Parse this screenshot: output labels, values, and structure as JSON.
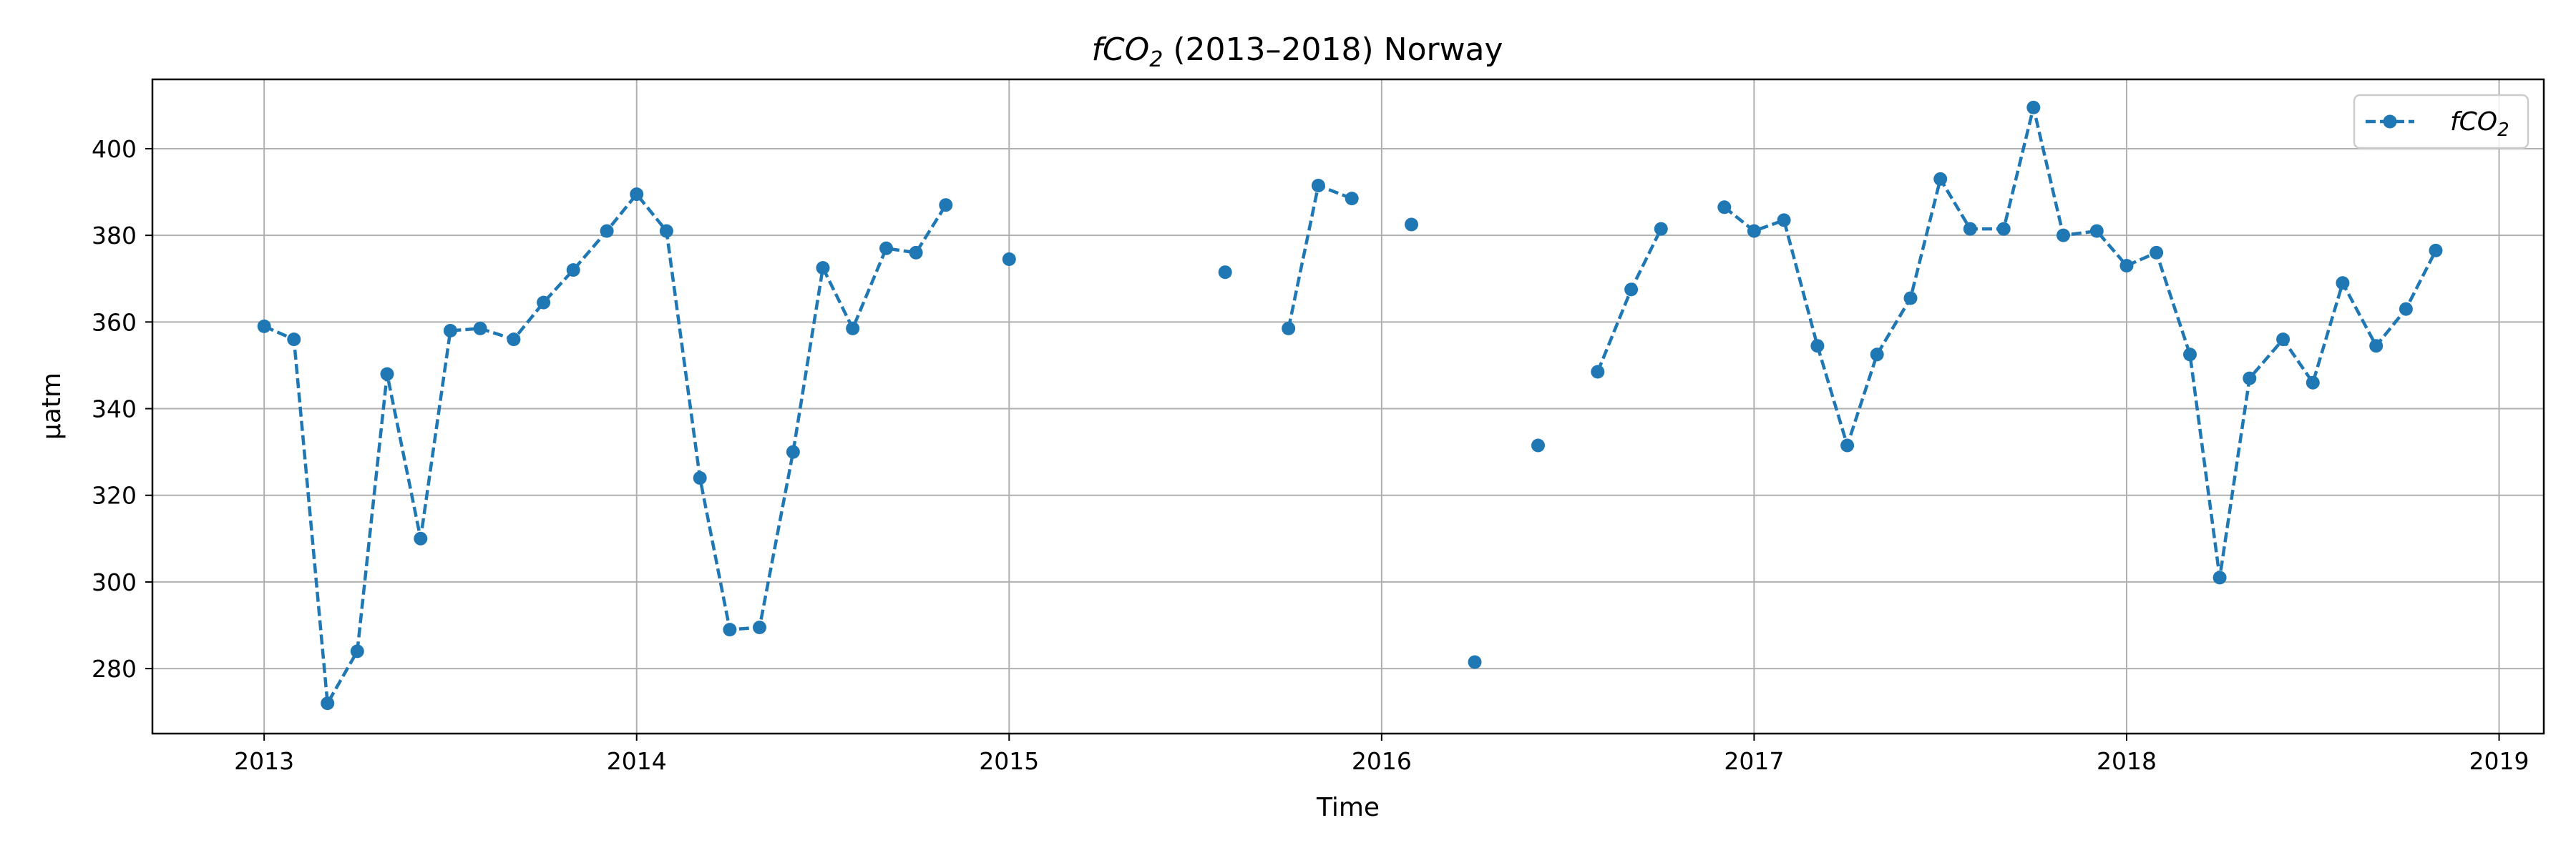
{
  "chart_data": {
    "type": "line",
    "title": {
      "symbol": "fCO",
      "subscript": "2",
      "suffix": " (2013–2018) Norway"
    },
    "xlabel": "Time",
    "ylabel": "µatm",
    "xlim": [
      2012.7,
      2019.12
    ],
    "ylim": [
      265,
      416
    ],
    "xticks": [
      2013,
      2014,
      2015,
      2016,
      2017,
      2018,
      2019
    ],
    "xtick_labels": [
      "2013",
      "2014",
      "2015",
      "2016",
      "2017",
      "2018",
      "2019"
    ],
    "yticks": [
      280,
      300,
      320,
      340,
      360,
      380,
      400
    ],
    "ytick_labels": [
      "280",
      "300",
      "320",
      "340",
      "360",
      "380",
      "400"
    ],
    "grid": true,
    "legend": {
      "position": "top-right",
      "symbol": "fCO",
      "subscript": "2"
    },
    "colors": {
      "series": "#1f77b4"
    },
    "series": [
      {
        "style": "dashed-line-with-circle-markers",
        "points": [
          [
            2013.0,
            359
          ],
          [
            2013.08,
            356
          ],
          [
            2013.17,
            272
          ],
          [
            2013.25,
            284
          ],
          [
            2013.33,
            348
          ],
          [
            2013.42,
            310
          ],
          [
            2013.5,
            358
          ],
          [
            2013.58,
            358.5
          ],
          [
            2013.67,
            356
          ],
          [
            2013.75,
            364.5
          ],
          [
            2013.83,
            372
          ],
          [
            2013.92,
            381
          ],
          [
            2014.0,
            389.5
          ],
          [
            2014.08,
            381
          ],
          [
            2014.17,
            324
          ],
          [
            2014.25,
            289
          ],
          [
            2014.33,
            289.5
          ],
          [
            2014.42,
            330
          ],
          [
            2014.5,
            372.5
          ],
          [
            2014.58,
            358.5
          ],
          [
            2014.67,
            377
          ],
          [
            2014.75,
            376
          ],
          [
            2014.83,
            387
          ],
          [
            2014.92,
            null
          ],
          [
            2015.0,
            374.5
          ],
          [
            2015.08,
            null
          ],
          [
            2015.58,
            371.5
          ],
          [
            2015.67,
            null
          ],
          [
            2015.75,
            358.5
          ],
          [
            2015.83,
            391.5
          ],
          [
            2015.92,
            388.5
          ],
          [
            2016.0,
            null
          ],
          [
            2016.08,
            382.5
          ],
          [
            2016.17,
            null
          ],
          [
            2016.25,
            281.5
          ],
          [
            2016.33,
            null
          ],
          [
            2016.42,
            331.5
          ],
          [
            2016.5,
            null
          ],
          [
            2016.58,
            348.5
          ],
          [
            2016.67,
            367.5
          ],
          [
            2016.75,
            381.5
          ],
          [
            2016.83,
            null
          ],
          [
            2016.92,
            386.5
          ],
          [
            2017.0,
            381
          ],
          [
            2017.08,
            383.5
          ],
          [
            2017.17,
            354.5
          ],
          [
            2017.25,
            331.5
          ],
          [
            2017.33,
            352.5
          ],
          [
            2017.42,
            365.5
          ],
          [
            2017.5,
            393
          ],
          [
            2017.58,
            381.5
          ],
          [
            2017.67,
            381.5
          ],
          [
            2017.75,
            409.5
          ],
          [
            2017.83,
            380
          ],
          [
            2017.92,
            381
          ],
          [
            2018.0,
            373
          ],
          [
            2018.08,
            376
          ],
          [
            2018.17,
            352.5
          ],
          [
            2018.25,
            301
          ],
          [
            2018.33,
            347
          ],
          [
            2018.42,
            356
          ],
          [
            2018.5,
            346
          ],
          [
            2018.58,
            369
          ],
          [
            2018.67,
            354.5
          ],
          [
            2018.75,
            363
          ],
          [
            2018.83,
            376.5
          ]
        ]
      }
    ]
  }
}
